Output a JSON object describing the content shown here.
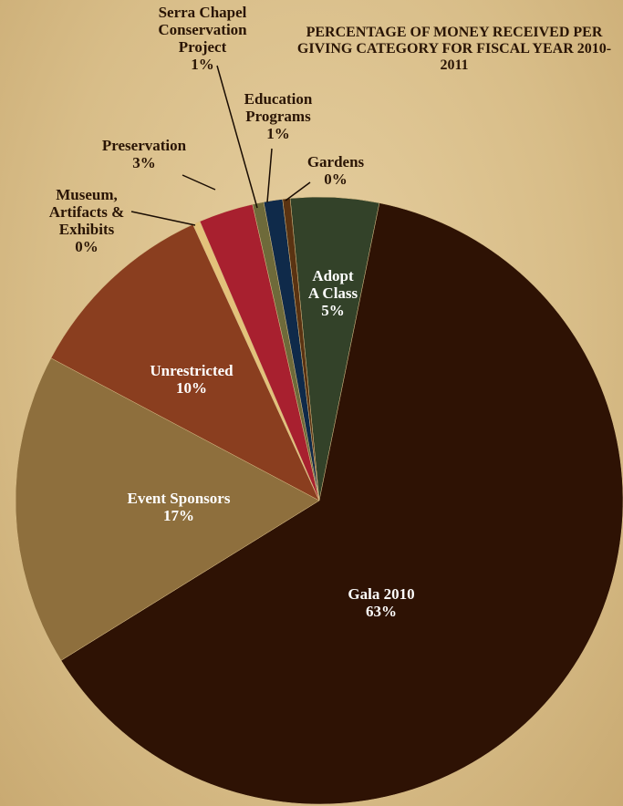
{
  "chart_data": {
    "type": "pie",
    "title": "PERCENTAGE OF MONEY RECEIVED PER GIVING CATEGORY FOR FISCAL YEAR 2010-2011",
    "categories": [
      "Adopt A Class",
      "Gala 2010",
      "Event Sponsors",
      "Unrestricted",
      "Museum, Artifacts & Exhibits",
      "Preservation",
      "Serra Chapel Conservation Project",
      "Education Programs",
      "Gardens"
    ],
    "values": [
      4.7,
      63.0,
      16.6,
      10.4,
      0.4,
      2.9,
      0.6,
      1.0,
      0.4
    ],
    "value_labels": [
      "5%",
      "63%",
      "17%",
      "10%",
      "0%",
      "3%",
      "1%",
      "1%",
      "0%"
    ],
    "colors": [
      "#334229",
      "#2e1204",
      "#8e6f3d",
      "#8a3e1f",
      "#e3c27a",
      "#a8202f",
      "#6e6a3a",
      "#0f2a4a",
      "#5a3312"
    ]
  }
}
